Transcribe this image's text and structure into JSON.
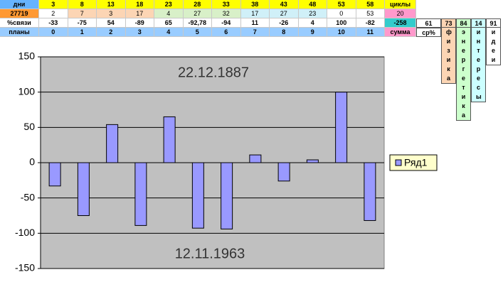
{
  "sheet": {
    "rows": [
      [
        "дни",
        "3",
        "8",
        "13",
        "18",
        "23",
        "28",
        "33",
        "38",
        "43",
        "48",
        "53",
        "58",
        "циклы"
      ],
      [
        "27719",
        "2",
        "7",
        "3",
        "17",
        "4",
        "27",
        "32",
        "17",
        "27",
        "23",
        "0",
        "53",
        "20"
      ],
      [
        "%связи",
        "-33",
        "-75",
        "54",
        "-89",
        "65",
        "-92,78",
        "-94",
        "11",
        "-26",
        "4",
        "100",
        "-82",
        "-258",
        "61",
        "73",
        "84",
        "14",
        "91"
      ],
      [
        "планы",
        "0",
        "1",
        "2",
        "3",
        "4",
        "5",
        "6",
        "7",
        "8",
        "9",
        "10",
        "11",
        "сумма",
        "ср%"
      ]
    ],
    "vertical": [
      "физика",
      "энергетика",
      "интересы",
      "идеи"
    ]
  },
  "chart_data": {
    "type": "bar",
    "annotations": [
      "22.12.1887",
      "12.11.1963"
    ],
    "categories": [
      null,
      null,
      null,
      null,
      null,
      null,
      null,
      null,
      null,
      null,
      null,
      null
    ],
    "series": [
      {
        "name": "Ряд1",
        "color": "#9999ff",
        "values": [
          -33,
          -75,
          54,
          -89,
          65,
          -92.78,
          -94,
          11,
          -26,
          4,
          100,
          -82
        ]
      }
    ],
    "ylim": [
      -150,
      150
    ],
    "yticks": [
      -150,
      -100,
      -50,
      0,
      50,
      100,
      150
    ],
    "grid": true,
    "legend": "right"
  }
}
